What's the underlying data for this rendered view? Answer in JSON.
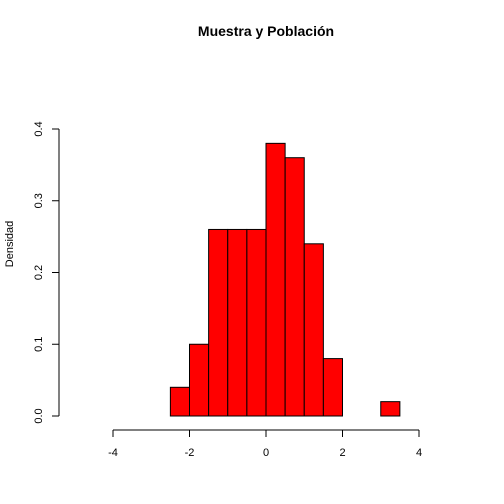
{
  "chart_data": {
    "type": "bar",
    "title": "Muestra y Población",
    "xlabel": "",
    "ylabel": "Densidad",
    "bar_color": "#ff0000",
    "border_color": "#000000",
    "xlim": [
      -4,
      4
    ],
    "ylim": [
      0,
      0.4
    ],
    "x_ticks": [
      -4,
      -2,
      0,
      2,
      4
    ],
    "y_ticks": [
      0.0,
      0.1,
      0.2,
      0.3,
      0.4
    ],
    "x_tick_labels": [
      "-4",
      "-2",
      "0",
      "2",
      "4"
    ],
    "y_tick_labels": [
      "0.0",
      "0.1",
      "0.2",
      "0.3",
      "0.4"
    ],
    "grid": false,
    "bins": [
      {
        "x0": -2.5,
        "x1": -2.0,
        "density": 0.04
      },
      {
        "x0": -2.0,
        "x1": -1.5,
        "density": 0.1
      },
      {
        "x0": -1.5,
        "x1": -1.0,
        "density": 0.26
      },
      {
        "x0": -1.0,
        "x1": -0.5,
        "density": 0.26
      },
      {
        "x0": -0.5,
        "x1": 0.0,
        "density": 0.26
      },
      {
        "x0": 0.0,
        "x1": 0.5,
        "density": 0.38
      },
      {
        "x0": 0.5,
        "x1": 1.0,
        "density": 0.36
      },
      {
        "x0": 1.0,
        "x1": 1.5,
        "density": 0.24
      },
      {
        "x0": 1.5,
        "x1": 2.0,
        "density": 0.08
      },
      {
        "x0": 2.0,
        "x1": 2.5,
        "density": 0.0
      },
      {
        "x0": 2.5,
        "x1": 3.0,
        "density": 0.0
      },
      {
        "x0": 3.0,
        "x1": 3.5,
        "density": 0.02
      }
    ]
  }
}
